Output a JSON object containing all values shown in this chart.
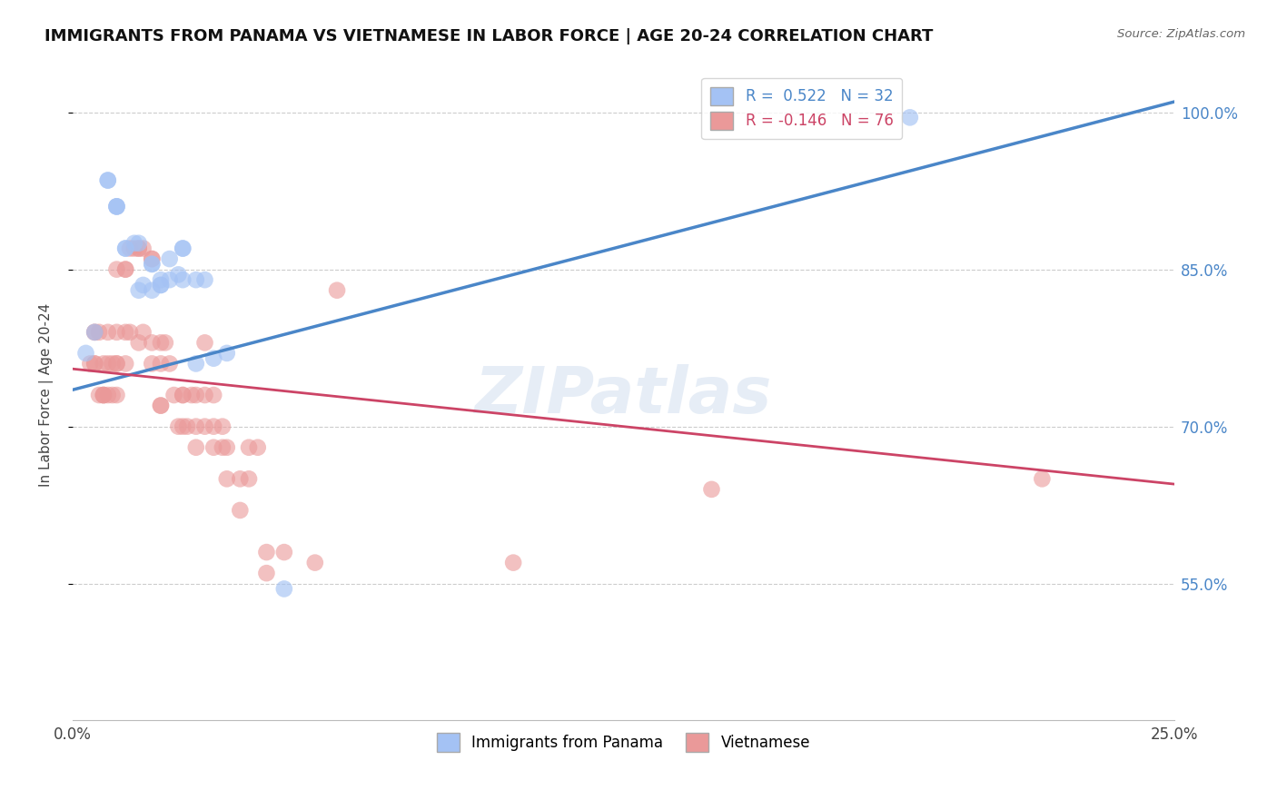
{
  "title": "IMMIGRANTS FROM PANAMA VS VIETNAMESE IN LABOR FORCE | AGE 20-24 CORRELATION CHART",
  "source": "Source: ZipAtlas.com",
  "ylabel": "In Labor Force | Age 20-24",
  "xlim": [
    0.0,
    0.25
  ],
  "ylim": [
    0.42,
    1.04
  ],
  "xticks": [
    0.0,
    0.05,
    0.1,
    0.15,
    0.2,
    0.25
  ],
  "xtick_labels": [
    "0.0%",
    "",
    "",
    "",
    "",
    "25.0%"
  ],
  "ytick_labels_right": [
    "55.0%",
    "70.0%",
    "85.0%",
    "100.0%"
  ],
  "ytick_vals_right": [
    0.55,
    0.7,
    0.85,
    1.0
  ],
  "legend_blue_label": "R =  0.522   N = 32",
  "legend_pink_label": "R = -0.146   N = 76",
  "legend_bottom_blue": "Immigrants from Panama",
  "legend_bottom_pink": "Vietnamese",
  "blue_color": "#a4c2f4",
  "pink_color": "#ea9999",
  "blue_line_color": "#4a86c8",
  "pink_line_color": "#cc4466",
  "watermark_text": "ZIPatlas",
  "blue_line_x": [
    0.0,
    0.25
  ],
  "blue_line_y": [
    0.735,
    1.01
  ],
  "pink_line_x": [
    0.0,
    0.25
  ],
  "pink_line_y": [
    0.755,
    0.645
  ],
  "panama_x": [
    0.003,
    0.005,
    0.008,
    0.008,
    0.01,
    0.01,
    0.01,
    0.012,
    0.012,
    0.014,
    0.015,
    0.015,
    0.016,
    0.018,
    0.018,
    0.018,
    0.02,
    0.02,
    0.02,
    0.022,
    0.022,
    0.024,
    0.025,
    0.025,
    0.025,
    0.028,
    0.028,
    0.03,
    0.032,
    0.035,
    0.048,
    0.19
  ],
  "panama_y": [
    0.77,
    0.79,
    0.935,
    0.935,
    0.91,
    0.91,
    0.91,
    0.87,
    0.87,
    0.875,
    0.875,
    0.83,
    0.835,
    0.83,
    0.855,
    0.855,
    0.835,
    0.835,
    0.84,
    0.86,
    0.84,
    0.845,
    0.84,
    0.87,
    0.87,
    0.84,
    0.76,
    0.84,
    0.765,
    0.77,
    0.545,
    0.995
  ],
  "viet_x": [
    0.004,
    0.005,
    0.005,
    0.005,
    0.005,
    0.006,
    0.006,
    0.007,
    0.007,
    0.007,
    0.007,
    0.008,
    0.008,
    0.008,
    0.009,
    0.009,
    0.01,
    0.01,
    0.01,
    0.01,
    0.01,
    0.012,
    0.012,
    0.012,
    0.012,
    0.013,
    0.013,
    0.014,
    0.015,
    0.015,
    0.015,
    0.016,
    0.016,
    0.018,
    0.018,
    0.018,
    0.018,
    0.02,
    0.02,
    0.02,
    0.02,
    0.021,
    0.022,
    0.023,
    0.024,
    0.025,
    0.025,
    0.025,
    0.026,
    0.027,
    0.028,
    0.028,
    0.028,
    0.03,
    0.03,
    0.03,
    0.032,
    0.032,
    0.032,
    0.034,
    0.034,
    0.035,
    0.035,
    0.038,
    0.038,
    0.04,
    0.04,
    0.042,
    0.044,
    0.044,
    0.048,
    0.055,
    0.06,
    0.1,
    0.145,
    0.22
  ],
  "viet_y": [
    0.76,
    0.76,
    0.76,
    0.79,
    0.79,
    0.73,
    0.79,
    0.76,
    0.73,
    0.73,
    0.73,
    0.73,
    0.76,
    0.79,
    0.76,
    0.73,
    0.73,
    0.76,
    0.76,
    0.79,
    0.85,
    0.76,
    0.79,
    0.85,
    0.85,
    0.79,
    0.87,
    0.87,
    0.87,
    0.87,
    0.78,
    0.87,
    0.79,
    0.86,
    0.86,
    0.78,
    0.76,
    0.78,
    0.76,
    0.72,
    0.72,
    0.78,
    0.76,
    0.73,
    0.7,
    0.73,
    0.7,
    0.73,
    0.7,
    0.73,
    0.7,
    0.73,
    0.68,
    0.78,
    0.73,
    0.7,
    0.73,
    0.7,
    0.68,
    0.7,
    0.68,
    0.68,
    0.65,
    0.65,
    0.62,
    0.68,
    0.65,
    0.68,
    0.56,
    0.58,
    0.58,
    0.57,
    0.83,
    0.57,
    0.64,
    0.65
  ]
}
